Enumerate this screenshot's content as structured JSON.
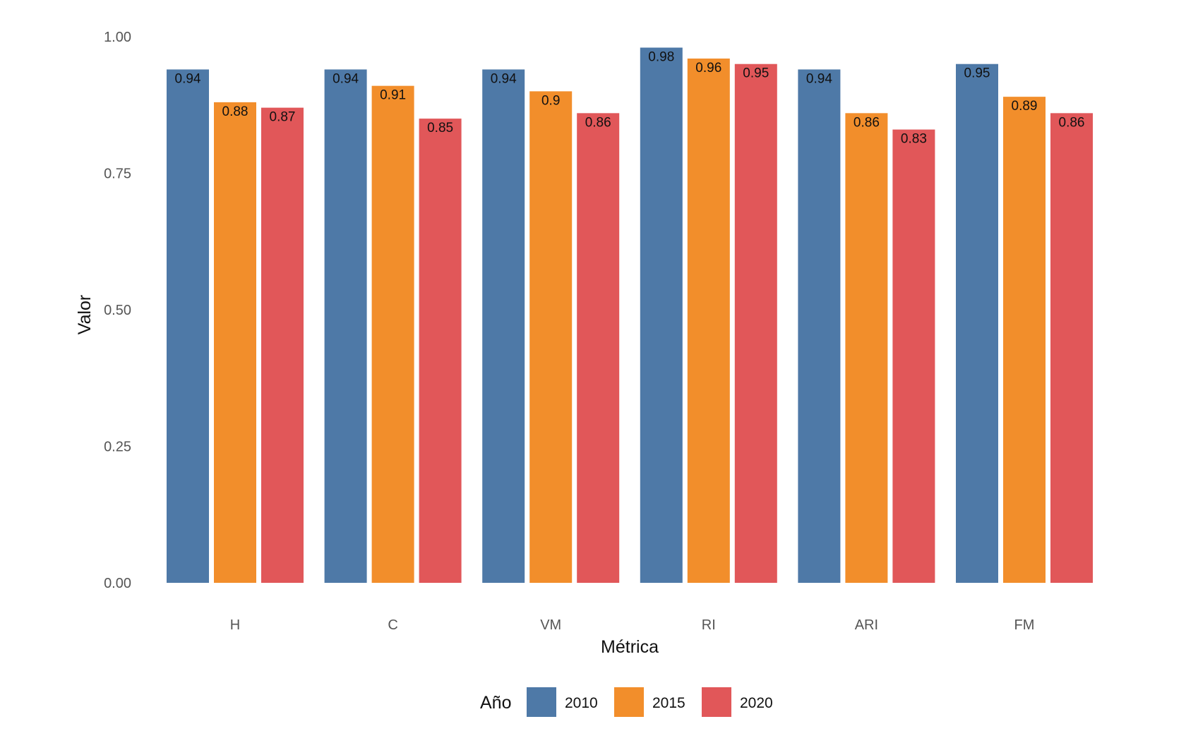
{
  "chart_data": {
    "type": "bar",
    "categories": [
      "H",
      "C",
      "VM",
      "RI",
      "ARI",
      "FM"
    ],
    "series": [
      {
        "name": "2010",
        "color": "#4e79a7",
        "values": [
          0.94,
          0.94,
          0.94,
          0.98,
          0.94,
          0.95
        ]
      },
      {
        "name": "2015",
        "color": "#f28e2b",
        "values": [
          0.88,
          0.91,
          0.9,
          0.96,
          0.86,
          0.89
        ]
      },
      {
        "name": "2020",
        "color": "#e15759",
        "values": [
          0.87,
          0.85,
          0.86,
          0.95,
          0.83,
          0.86
        ]
      }
    ],
    "xlabel": "Métrica",
    "ylabel": "Valor",
    "ylim": [
      0,
      1
    ],
    "yticks": [
      "0.00",
      "0.25",
      "0.50",
      "0.75",
      "1.00"
    ],
    "legend": {
      "title": "Año",
      "position": "bottom"
    },
    "grid": false
  }
}
